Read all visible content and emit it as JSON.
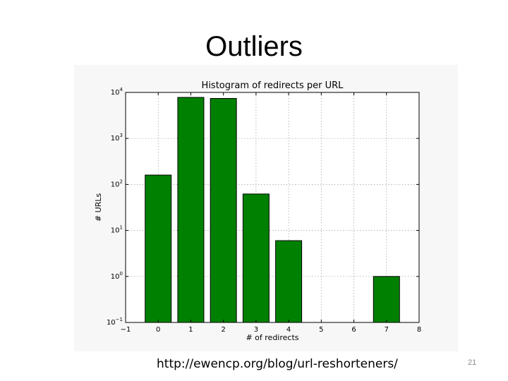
{
  "slide": {
    "title": "Outliers",
    "source_url": "http://ewencp.org/blog/url-reshorteners/",
    "page_number": "21"
  },
  "chart_data": {
    "type": "bar",
    "title": "Histogram of redirects per URL",
    "xlabel": "# of redirects",
    "ylabel": "# URLs",
    "yscale": "log",
    "xlim": [
      -1,
      8
    ],
    "ylim": [
      0.1,
      10000
    ],
    "xticks": [
      "−1",
      "0",
      "1",
      "2",
      "3",
      "4",
      "5",
      "6",
      "7",
      "8"
    ],
    "yticks": [
      {
        "base": "10",
        "exp": "−1"
      },
      {
        "base": "10",
        "exp": "0"
      },
      {
        "base": "10",
        "exp": "1"
      },
      {
        "base": "10",
        "exp": "2"
      },
      {
        "base": "10",
        "exp": "3"
      },
      {
        "base": "10",
        "exp": "4"
      }
    ],
    "grid": true,
    "bar_color": "#008000",
    "x": [
      0,
      1,
      2,
      3,
      4,
      7
    ],
    "values": [
      160,
      7800,
      7400,
      62,
      6,
      1
    ]
  }
}
